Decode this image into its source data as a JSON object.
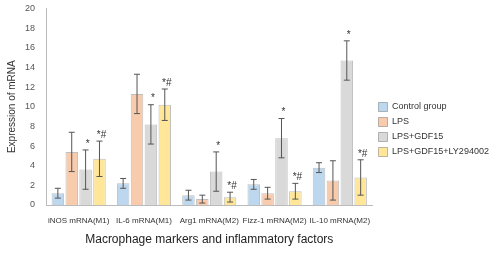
{
  "chart_data": {
    "type": "bar",
    "x_label": "Macrophage markers and inflammatory factors",
    "y_label": "Expression of mRNA",
    "categories": [
      "iNOS mRNA(M1)",
      "IL-6 mRNA(M1)",
      "Arg1 mRNA(M2)",
      "Fizz-1 mRNA(M2)",
      "IL-10 mRNA(M2)"
    ],
    "series": [
      {
        "name": "Control group",
        "color": "#bdd7ee",
        "values": [
          1.2,
          2.2,
          1.0,
          2.1,
          3.8
        ],
        "errors": [
          0.5,
          0.5,
          0.5,
          0.5,
          0.5
        ]
      },
      {
        "name": "LPS",
        "color": "#f8cbad",
        "values": [
          5.4,
          11.3,
          0.6,
          1.2,
          2.5
        ],
        "errors": [
          2.0,
          2.0,
          0.4,
          0.6,
          2.0
        ]
      },
      {
        "name": "LPS+GDF15",
        "color": "#d9d9d9",
        "values": [
          3.6,
          8.2,
          3.4,
          6.8,
          14.7
        ],
        "errors": [
          2.0,
          2.0,
          2.0,
          2.0,
          2.0
        ],
        "annotations": [
          "*",
          "*",
          "*",
          "*",
          "*"
        ]
      },
      {
        "name": "LPS+GDF15+LY294002",
        "color": "#ffe699",
        "values": [
          4.7,
          10.2,
          0.8,
          1.4,
          2.8
        ],
        "errors": [
          1.8,
          1.6,
          0.5,
          0.8,
          1.8
        ],
        "annotations": [
          "*#",
          "*#",
          "*#",
          "*#",
          "*#"
        ]
      }
    ],
    "ylim": [
      0,
      20
    ],
    "yticks": [
      0,
      2,
      4,
      6,
      8,
      10,
      12,
      14,
      16,
      18,
      20
    ],
    "grid": false,
    "legend": "right"
  }
}
